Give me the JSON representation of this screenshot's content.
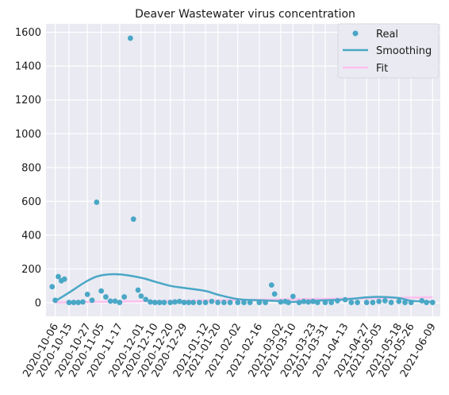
{
  "chart_data": {
    "type": "scatter",
    "title": "Deaver Wastewater virus concentration",
    "xlabel": "",
    "ylabel": "",
    "ylim": [
      -80,
      1650
    ],
    "y_ticks": [
      0,
      200,
      400,
      600,
      800,
      1000,
      1200,
      1400,
      1600
    ],
    "x_range": [
      "2020-09-30",
      "2021-06-14"
    ],
    "x_ticks": [
      "2020-10-06",
      "2020-10-15",
      "2020-10-27",
      "2020-11-05",
      "2020-11-17",
      "2020-12-01",
      "2020-12-10",
      "2020-12-20",
      "2020-12-29",
      "2021-01-12",
      "2021-01-20",
      "2021-02-02",
      "2021-02-16",
      "2021-03-02",
      "2021-03-10",
      "2021-03-23",
      "2021-03-31",
      "2021-04-13",
      "2021-04-27",
      "2021-05-05",
      "2021-05-18",
      "2021-05-26",
      "2021-06-09"
    ],
    "grid": true,
    "legend_position": "top-right",
    "colors": {
      "real": "#4aa7c6",
      "smoothing": "#4aa7c6",
      "fit": "#ffbfef",
      "background": "#eaeaf2",
      "grid": "#ffffff"
    },
    "series": [
      {
        "name": "Real",
        "kind": "points",
        "points": [
          [
            "2020-10-04",
            95
          ],
          [
            "2020-10-06",
            15
          ],
          [
            "2020-10-08",
            155
          ],
          [
            "2020-10-10",
            130
          ],
          [
            "2020-10-12",
            140
          ],
          [
            "2020-10-15",
            2
          ],
          [
            "2020-10-18",
            2
          ],
          [
            "2020-10-21",
            2
          ],
          [
            "2020-10-24",
            5
          ],
          [
            "2020-10-27",
            50
          ],
          [
            "2020-10-30",
            15
          ],
          [
            "2020-11-02",
            595
          ],
          [
            "2020-11-05",
            70
          ],
          [
            "2020-11-08",
            35
          ],
          [
            "2020-11-11",
            10
          ],
          [
            "2020-11-14",
            10
          ],
          [
            "2020-11-17",
            2
          ],
          [
            "2020-11-20",
            35
          ],
          [
            "2020-11-24",
            1565
          ],
          [
            "2020-11-26",
            495
          ],
          [
            "2020-11-29",
            75
          ],
          [
            "2020-12-01",
            40
          ],
          [
            "2020-12-04",
            20
          ],
          [
            "2020-12-07",
            5
          ],
          [
            "2020-12-10",
            2
          ],
          [
            "2020-12-13",
            2
          ],
          [
            "2020-12-16",
            2
          ],
          [
            "2020-12-20",
            2
          ],
          [
            "2020-12-23",
            5
          ],
          [
            "2020-12-26",
            8
          ],
          [
            "2020-12-29",
            2
          ],
          [
            "2021-01-01",
            2
          ],
          [
            "2021-01-04",
            2
          ],
          [
            "2021-01-08",
            2
          ],
          [
            "2021-01-12",
            2
          ],
          [
            "2021-01-16",
            8
          ],
          [
            "2021-01-20",
            2
          ],
          [
            "2021-01-24",
            2
          ],
          [
            "2021-01-28",
            2
          ],
          [
            "2021-02-02",
            2
          ],
          [
            "2021-02-06",
            2
          ],
          [
            "2021-02-10",
            2
          ],
          [
            "2021-02-16",
            2
          ],
          [
            "2021-02-20",
            2
          ],
          [
            "2021-02-24",
            105
          ],
          [
            "2021-02-26",
            52
          ],
          [
            "2021-03-02",
            5
          ],
          [
            "2021-03-05",
            8
          ],
          [
            "2021-03-07",
            2
          ],
          [
            "2021-03-10",
            38
          ],
          [
            "2021-03-14",
            2
          ],
          [
            "2021-03-17",
            8
          ],
          [
            "2021-03-20",
            5
          ],
          [
            "2021-03-23",
            8
          ],
          [
            "2021-03-26",
            2
          ],
          [
            "2021-03-31",
            2
          ],
          [
            "2021-04-04",
            2
          ],
          [
            "2021-04-08",
            12
          ],
          [
            "2021-04-13",
            18
          ],
          [
            "2021-04-17",
            2
          ],
          [
            "2021-04-21",
            2
          ],
          [
            "2021-04-27",
            2
          ],
          [
            "2021-05-01",
            2
          ],
          [
            "2021-05-05",
            8
          ],
          [
            "2021-05-09",
            12
          ],
          [
            "2021-05-13",
            2
          ],
          [
            "2021-05-18",
            8
          ],
          [
            "2021-05-22",
            2
          ],
          [
            "2021-05-26",
            2
          ],
          [
            "2021-06-02",
            12
          ],
          [
            "2021-06-05",
            2
          ],
          [
            "2021-06-09",
            2
          ]
        ]
      },
      {
        "name": "Smoothing",
        "kind": "line",
        "points": [
          [
            "2020-10-06",
            10
          ],
          [
            "2020-10-15",
            60
          ],
          [
            "2020-10-27",
            130
          ],
          [
            "2020-11-05",
            162
          ],
          [
            "2020-11-17",
            168
          ],
          [
            "2020-12-01",
            148
          ],
          [
            "2020-12-10",
            125
          ],
          [
            "2020-12-20",
            100
          ],
          [
            "2020-12-29",
            88
          ],
          [
            "2021-01-12",
            70
          ],
          [
            "2021-01-20",
            48
          ],
          [
            "2021-02-02",
            22
          ],
          [
            "2021-02-16",
            15
          ],
          [
            "2021-03-02",
            10
          ],
          [
            "2021-03-10",
            5
          ],
          [
            "2021-03-23",
            12
          ],
          [
            "2021-03-31",
            15
          ],
          [
            "2021-04-13",
            20
          ],
          [
            "2021-04-27",
            32
          ],
          [
            "2021-05-05",
            35
          ],
          [
            "2021-05-18",
            28
          ],
          [
            "2021-05-26",
            12
          ],
          [
            "2021-06-09",
            5
          ]
        ]
      },
      {
        "name": "Fit",
        "kind": "line",
        "points": [
          [
            "2020-10-06",
            2
          ],
          [
            "2021-06-09",
            32
          ]
        ]
      }
    ]
  }
}
